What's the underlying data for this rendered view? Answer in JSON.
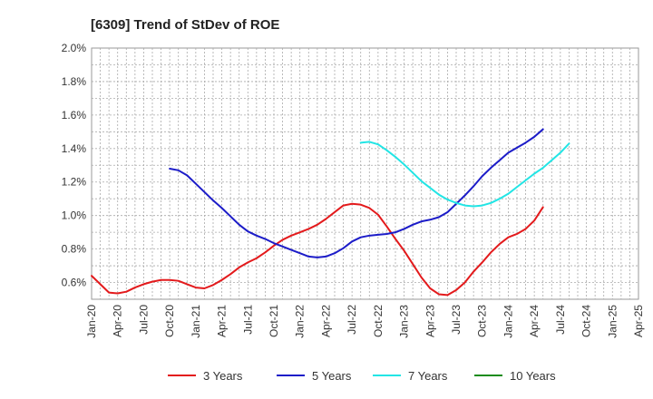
{
  "chart_data": {
    "type": "line",
    "title": "[6309]  Trend of StDev of ROE",
    "xlabel": "",
    "ylabel": "",
    "x_ticks": [
      "Jan-20",
      "Apr-20",
      "Jul-20",
      "Oct-20",
      "Jan-21",
      "Apr-21",
      "Jul-21",
      "Oct-21",
      "Jan-22",
      "Apr-22",
      "Jul-22",
      "Oct-22",
      "Jan-23",
      "Apr-23",
      "Jul-23",
      "Oct-23",
      "Jan-24",
      "Apr-24",
      "Jul-24",
      "Oct-24",
      "Jan-25",
      "Apr-25"
    ],
    "y_ticks": [
      "0.6%",
      "0.8%",
      "1.0%",
      "1.2%",
      "1.4%",
      "1.6%",
      "1.8%",
      "2.0%"
    ],
    "ylim": [
      0.5,
      2.0
    ],
    "grid": true,
    "legend_position": "bottom",
    "series": [
      {
        "name": "3 Years",
        "color": "#e31a1c",
        "points": [
          [
            0,
            0.64
          ],
          [
            1,
            0.59
          ],
          [
            2,
            0.54
          ],
          [
            3,
            0.535
          ],
          [
            4,
            0.545
          ],
          [
            5,
            0.57
          ],
          [
            6,
            0.59
          ],
          [
            7,
            0.605
          ],
          [
            8,
            0.615
          ],
          [
            9,
            0.615
          ],
          [
            10,
            0.61
          ],
          [
            11,
            0.59
          ],
          [
            12,
            0.57
          ],
          [
            13,
            0.565
          ],
          [
            14,
            0.585
          ],
          [
            15,
            0.615
          ],
          [
            16,
            0.65
          ],
          [
            17,
            0.69
          ],
          [
            18,
            0.72
          ],
          [
            19,
            0.745
          ],
          [
            20,
            0.78
          ],
          [
            21,
            0.82
          ],
          [
            22,
            0.855
          ],
          [
            23,
            0.88
          ],
          [
            24,
            0.9
          ],
          [
            25,
            0.92
          ],
          [
            26,
            0.945
          ],
          [
            27,
            0.98
          ],
          [
            28,
            1.02
          ],
          [
            29,
            1.06
          ],
          [
            30,
            1.07
          ],
          [
            31,
            1.065
          ],
          [
            32,
            1.045
          ],
          [
            33,
            1.005
          ],
          [
            34,
            0.935
          ],
          [
            35,
            0.86
          ],
          [
            36,
            0.79
          ],
          [
            37,
            0.71
          ],
          [
            38,
            0.63
          ],
          [
            39,
            0.565
          ],
          [
            40,
            0.53
          ],
          [
            41,
            0.525
          ],
          [
            42,
            0.555
          ],
          [
            43,
            0.6
          ],
          [
            44,
            0.665
          ],
          [
            45,
            0.72
          ],
          [
            46,
            0.78
          ],
          [
            47,
            0.83
          ],
          [
            48,
            0.87
          ],
          [
            49,
            0.89
          ],
          [
            50,
            0.92
          ],
          [
            51,
            0.97
          ],
          [
            52,
            1.05
          ]
        ]
      },
      {
        "name": "5 Years",
        "color": "#1c1cc8",
        "points": [
          [
            9,
            1.28
          ],
          [
            10,
            1.27
          ],
          [
            11,
            1.24
          ],
          [
            12,
            1.19
          ],
          [
            13,
            1.14
          ],
          [
            14,
            1.09
          ],
          [
            15,
            1.045
          ],
          [
            16,
            0.995
          ],
          [
            17,
            0.945
          ],
          [
            18,
            0.905
          ],
          [
            19,
            0.88
          ],
          [
            20,
            0.86
          ],
          [
            21,
            0.835
          ],
          [
            22,
            0.815
          ],
          [
            23,
            0.795
          ],
          [
            24,
            0.775
          ],
          [
            25,
            0.755
          ],
          [
            26,
            0.75
          ],
          [
            27,
            0.755
          ],
          [
            28,
            0.775
          ],
          [
            29,
            0.805
          ],
          [
            30,
            0.845
          ],
          [
            31,
            0.87
          ],
          [
            32,
            0.88
          ],
          [
            33,
            0.885
          ],
          [
            34,
            0.89
          ],
          [
            35,
            0.9
          ],
          [
            36,
            0.92
          ],
          [
            37,
            0.945
          ],
          [
            38,
            0.965
          ],
          [
            39,
            0.975
          ],
          [
            40,
            0.99
          ],
          [
            41,
            1.02
          ],
          [
            42,
            1.07
          ],
          [
            43,
            1.12
          ],
          [
            44,
            1.175
          ],
          [
            45,
            1.235
          ],
          [
            46,
            1.285
          ],
          [
            47,
            1.33
          ],
          [
            48,
            1.375
          ],
          [
            49,
            1.405
          ],
          [
            50,
            1.435
          ],
          [
            51,
            1.47
          ],
          [
            52,
            1.515
          ]
        ]
      },
      {
        "name": "7 Years",
        "color": "#22e5e5",
        "points": [
          [
            31,
            1.435
          ],
          [
            32,
            1.44
          ],
          [
            33,
            1.425
          ],
          [
            34,
            1.39
          ],
          [
            35,
            1.35
          ],
          [
            36,
            1.305
          ],
          [
            37,
            1.255
          ],
          [
            38,
            1.205
          ],
          [
            39,
            1.165
          ],
          [
            40,
            1.125
          ],
          [
            41,
            1.095
          ],
          [
            42,
            1.075
          ],
          [
            43,
            1.06
          ],
          [
            44,
            1.055
          ],
          [
            45,
            1.06
          ],
          [
            46,
            1.075
          ],
          [
            47,
            1.1
          ],
          [
            48,
            1.13
          ],
          [
            49,
            1.17
          ],
          [
            50,
            1.21
          ],
          [
            51,
            1.25
          ],
          [
            52,
            1.285
          ],
          [
            53,
            1.33
          ],
          [
            54,
            1.375
          ],
          [
            55,
            1.43
          ]
        ]
      },
      {
        "name": "10 Years",
        "color": "#1a8c1a",
        "points": []
      }
    ]
  }
}
